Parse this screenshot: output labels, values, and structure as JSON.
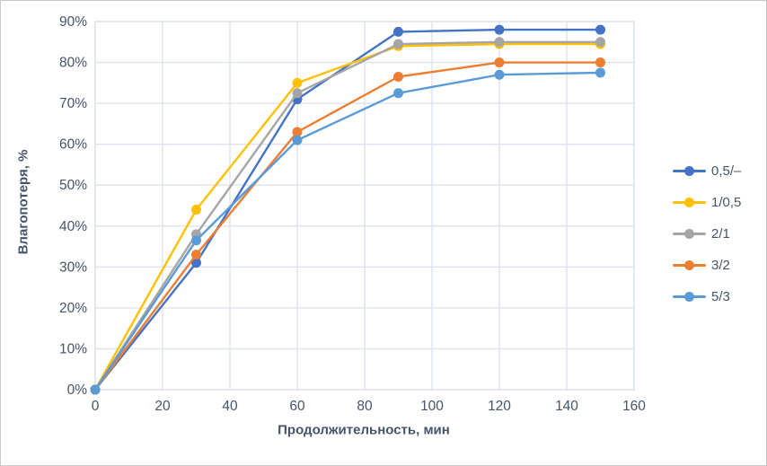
{
  "chart_data": {
    "type": "line",
    "title": "",
    "xlabel": "Продолжительность, мин",
    "ylabel": "Влагопотеря, %",
    "x": [
      0,
      30,
      60,
      90,
      120,
      150
    ],
    "series": [
      {
        "name": "0,5/–",
        "color": "#4472C4",
        "values": [
          0,
          31,
          71,
          87.5,
          88,
          88
        ]
      },
      {
        "name": "1/0,5",
        "color": "#FFC000",
        "values": [
          0,
          44,
          75,
          84,
          84.5,
          84.5
        ]
      },
      {
        "name": "2/1",
        "color": "#A5A5A5",
        "values": [
          0,
          38,
          72.5,
          84.5,
          85,
          85
        ]
      },
      {
        "name": "3/2",
        "color": "#ED7D31",
        "values": [
          0,
          33,
          63,
          76.5,
          80,
          80
        ]
      },
      {
        "name": "5/3",
        "color": "#5B9BD5",
        "values": [
          0,
          36.5,
          61,
          72.5,
          77,
          77.5
        ]
      }
    ],
    "x_ticks": [
      0,
      20,
      40,
      60,
      80,
      100,
      120,
      140,
      160
    ],
    "y_ticks": [
      "0%",
      "10%",
      "20%",
      "30%",
      "40%",
      "50%",
      "60%",
      "70%",
      "80%",
      "90%"
    ],
    "xlim": [
      0,
      160
    ],
    "ylim_percent": [
      0,
      90
    ],
    "grid": true,
    "legend_position": "right",
    "marker": "circle",
    "text_color": "#44546A",
    "gridline_color": "#dde3ec"
  }
}
